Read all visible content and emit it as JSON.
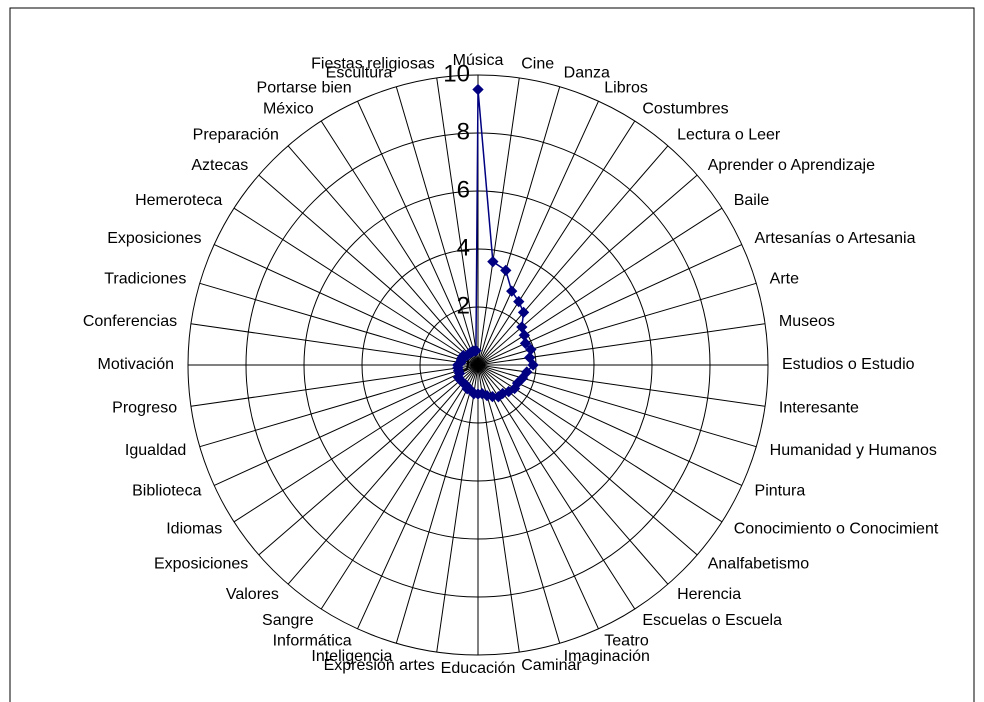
{
  "chart_data": {
    "type": "radar",
    "categories": [
      "Música",
      "Cine",
      "Danza",
      "Libros",
      "Costumbres",
      "Lectura o Leer",
      "Aprender o Aprendizaje",
      "Baile",
      "Artesanías o Artesania",
      "Arte",
      "Museos",
      "Estudios o Estudio",
      "Interesante",
      "Humanidad y Humanos",
      "Pintura",
      "Conocimiento o Conocimient",
      "Analfabetismo",
      "Herencia",
      "Escuelas o Escuela",
      "Teatro",
      "Imaginación",
      "Caminar",
      "Educación",
      "Expresión artes",
      "Inteligencia",
      "Informática",
      "Sangre",
      "Valores",
      "Exposiciones",
      "Idiomas",
      "Biblioteca",
      "Igualdad",
      "Progreso",
      "Motivación",
      "Conferencias",
      "Tradiciones",
      "Exposiciones",
      "Hemeroteca",
      "Aztecas",
      "Preparación",
      "México",
      "Portarse bien",
      "Escultura",
      "Fiestas religiosas"
    ],
    "series": [
      {
        "color": "#000080",
        "values": [
          9.5,
          3.6,
          3.4,
          2.8,
          2.6,
          2.4,
          2.0,
          1.9,
          1.8,
          1.9,
          1.8,
          1.9,
          1.7,
          1.6,
          1.5,
          1.5,
          1.4,
          1.3,
          1.3,
          1.2,
          1.1,
          1.0,
          1.0,
          1.0,
          0.9,
          0.9,
          0.8,
          0.8,
          0.8,
          0.8,
          0.7,
          0.7,
          0.7,
          0.7,
          0.6,
          0.6,
          0.6,
          0.6,
          0.5,
          0.5,
          0.5,
          0.5,
          0.5,
          0.5
        ]
      }
    ],
    "ylim": [
      0,
      10
    ],
    "yticks": [
      0,
      2,
      4,
      6,
      8,
      10
    ],
    "grid": true
  }
}
